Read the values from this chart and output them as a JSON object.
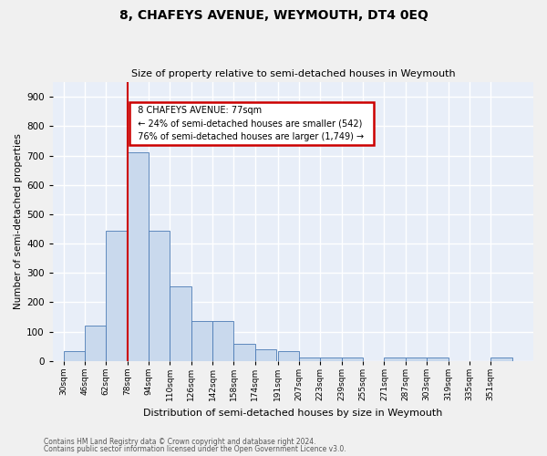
{
  "title": "8, CHAFEYS AVENUE, WEYMOUTH, DT4 0EQ",
  "subtitle": "Size of property relative to semi-detached houses in Weymouth",
  "xlabel": "Distribution of semi-detached houses by size in Weymouth",
  "ylabel": "Number of semi-detached properties",
  "bin_labels": [
    "30sqm",
    "46sqm",
    "62sqm",
    "78sqm",
    "94sqm",
    "110sqm",
    "126sqm",
    "142sqm",
    "158sqm",
    "174sqm",
    "191sqm",
    "207sqm",
    "223sqm",
    "239sqm",
    "255sqm",
    "271sqm",
    "287sqm",
    "303sqm",
    "319sqm",
    "335sqm",
    "351sqm"
  ],
  "bar_heights": [
    35,
    120,
    445,
    710,
    445,
    255,
    135,
    135,
    60,
    40,
    35,
    12,
    12,
    12,
    0,
    12,
    12,
    12,
    0,
    0,
    12
  ],
  "bar_color": "#c9d9ed",
  "bar_edge_color": "#4a7ab5",
  "vline_color": "#cc0000",
  "annotation_text_line1": "8 CHAFEYS AVENUE: 77sqm",
  "annotation_text_line2": "← 24% of semi-detached houses are smaller (542)",
  "annotation_text_line3": "76% of semi-detached houses are larger (1,749) →",
  "annotation_box_color": "#ffffff",
  "annotation_box_edge": "#cc0000",
  "ylim": [
    0,
    950
  ],
  "yticks": [
    0,
    100,
    200,
    300,
    400,
    500,
    600,
    700,
    800,
    900
  ],
  "footer1": "Contains HM Land Registry data © Crown copyright and database right 2024.",
  "footer2": "Contains public sector information licensed under the Open Government Licence v3.0.",
  "bg_color": "#e8eef8",
  "grid_color": "#ffffff",
  "fig_bg": "#f0f0f0"
}
